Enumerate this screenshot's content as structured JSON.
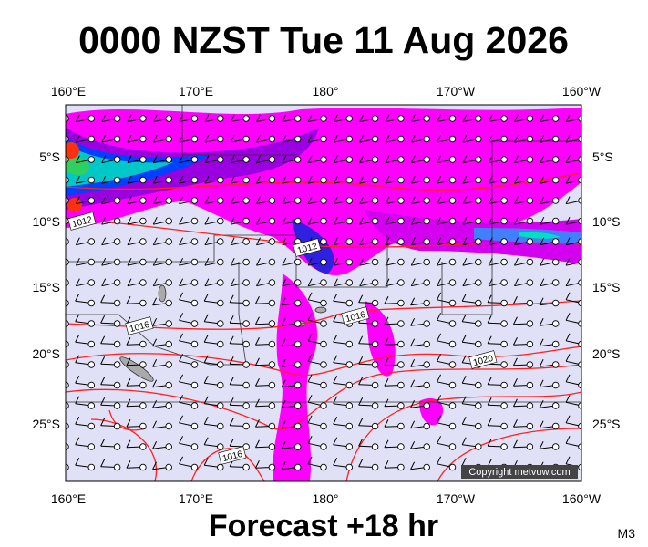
{
  "title": "0000 NZST Tue 11 Aug 2026",
  "longitude_labels": [
    "160°E",
    "170°E",
    "180°",
    "170°W",
    "160°W"
  ],
  "latitude_labels": [
    "5°S",
    "10°S",
    "15°S",
    "20°S",
    "25°S"
  ],
  "isobar_labels": [
    "1012",
    "1012",
    "1016",
    "1016",
    "1020",
    "1016"
  ],
  "copyright": "Copyright metvuw.com",
  "forecast": "Forecast +18 hr",
  "model": "M3"
}
